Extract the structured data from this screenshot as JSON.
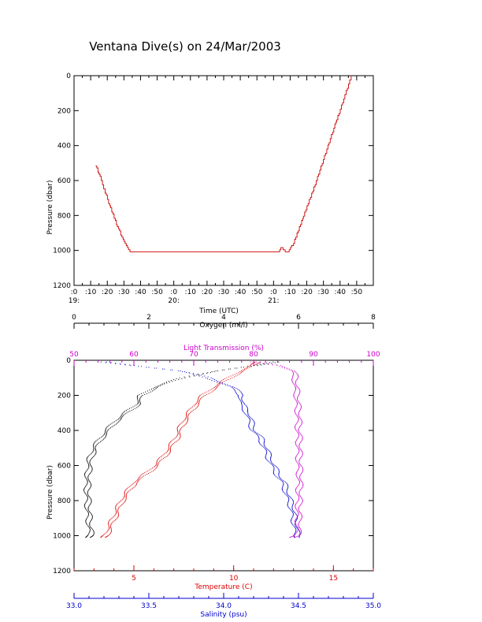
{
  "title": "Ventana Dive(s) on 24/Mar/2003",
  "colors": {
    "axis": "#000000",
    "depth": "#cc0000",
    "temperature": "#dd0000",
    "salinity": "#0000cc",
    "oxygen": "#000000",
    "transmission": "#cc00cc"
  },
  "chart_data": [
    {
      "type": "line",
      "id": "time-depth",
      "xlabel": "Time (UTC)",
      "ylabel": "Pressure (dbar)",
      "ylim": [
        1200,
        0
      ],
      "yticks": [
        "0",
        "200",
        "400",
        "600",
        "800",
        "1000",
        "1200"
      ],
      "xticks": [
        ":0",
        ":10",
        ":20",
        ":30",
        ":40",
        ":50",
        ":0",
        ":10",
        ":20",
        ":30",
        ":40",
        ":50",
        ":0",
        ":10",
        ":20",
        ":30",
        ":40",
        ":50"
      ],
      "hour_labels": [
        "19:",
        "20:",
        "21:"
      ],
      "x_minutes_range": [
        1140,
        1320
      ],
      "series": [
        {
          "color": "#cc0000",
          "x": [
            "19:13",
            "19:15",
            "19:18",
            "19:22",
            "19:26",
            "19:30",
            "19:33",
            "19:36",
            "19:38",
            "19:40",
            "20:00",
            "20:30",
            "21:00",
            "21:03",
            "21:05",
            "21:07",
            "21:08",
            "21:12",
            "21:18",
            "21:25",
            "21:32",
            "21:38",
            "21:43",
            "21:46",
            "21:47"
          ],
          "y": [
            515,
            560,
            650,
            760,
            860,
            950,
            1000,
            1012,
            1010,
            1012,
            1012,
            1012,
            1012,
            1010,
            980,
            1010,
            1012,
            960,
            800,
            620,
            420,
            250,
            110,
            20,
            0
          ]
        }
      ]
    },
    {
      "type": "scatter",
      "id": "profiles",
      "ylabel": "Pressure (dbar)",
      "ylim": [
        1200,
        0
      ],
      "yticks": [
        "0",
        "200",
        "400",
        "600",
        "800",
        "1000",
        "1200"
      ],
      "axes": [
        {
          "key": "oxygen",
          "label": "Oxygen (ml/l)",
          "position": "top-outer",
          "range": [
            0,
            8
          ],
          "ticks": [
            "0",
            "2",
            "4",
            "6",
            "8"
          ],
          "color": "#000000"
        },
        {
          "key": "transmission",
          "label": "Light Transmission (%)",
          "position": "top-inner",
          "range": [
            50,
            100
          ],
          "ticks": [
            "50",
            "60",
            "70",
            "80",
            "90",
            "100"
          ],
          "color": "#cc00cc"
        },
        {
          "key": "temperature",
          "label": "Temperature (C)",
          "position": "bottom-inner",
          "range": [
            2.0,
            17.0
          ],
          "ticks": [
            "5",
            "10",
            "15"
          ],
          "color": "#dd0000"
        },
        {
          "key": "salinity",
          "label": "Salinity (psu)",
          "position": "bottom-outer",
          "range": [
            33.0,
            35.0
          ],
          "ticks": [
            "33.0",
            "33.5",
            "34.0",
            "34.5",
            "35.0"
          ],
          "color": "#0000cc"
        }
      ],
      "series": [
        {
          "name": "Temperature",
          "axis": "temperature",
          "color": "#dd0000",
          "pressure": [
            10,
            30,
            60,
            100,
            150,
            200,
            250,
            300,
            350,
            400,
            450,
            500,
            550,
            600,
            650,
            700,
            750,
            800,
            850,
            900,
            950,
            1000,
            1012
          ],
          "values": [
            11.2,
            11.0,
            10.4,
            9.8,
            9.1,
            8.5,
            8.1,
            7.8,
            7.5,
            7.3,
            7.1,
            6.8,
            6.5,
            6.1,
            5.6,
            5.0,
            4.7,
            4.4,
            4.2,
            4.0,
            3.8,
            3.6,
            3.5
          ]
        },
        {
          "name": "Salinity",
          "axis": "salinity",
          "color": "#0000cc",
          "pressure": [
            10,
            30,
            60,
            100,
            150,
            200,
            250,
            300,
            350,
            400,
            450,
            500,
            550,
            600,
            650,
            700,
            750,
            800,
            850,
            900,
            950,
            1000,
            1012
          ],
          "values": [
            33.2,
            33.4,
            33.7,
            33.9,
            34.05,
            34.12,
            34.12,
            34.16,
            34.18,
            34.2,
            34.25,
            34.28,
            34.3,
            34.33,
            34.36,
            34.4,
            34.42,
            34.44,
            34.46,
            34.47,
            34.48,
            34.49,
            34.5
          ]
        },
        {
          "name": "Oxygen",
          "axis": "oxygen",
          "color": "#000000",
          "pressure": [
            10,
            30,
            60,
            100,
            150,
            200,
            250,
            300,
            350,
            400,
            450,
            500,
            550,
            600,
            650,
            700,
            750,
            800,
            850,
            900,
            950,
            1000,
            1012
          ],
          "values": [
            5.4,
            4.9,
            3.8,
            2.9,
            2.2,
            1.8,
            1.7,
            1.4,
            1.1,
            0.9,
            0.7,
            0.55,
            0.45,
            0.4,
            0.38,
            0.36,
            0.36,
            0.37,
            0.38,
            0.4,
            0.42,
            0.45,
            0.4
          ]
        },
        {
          "name": "Light Transmission",
          "axis": "transmission",
          "color": "#cc00cc",
          "pressure": [
            10,
            30,
            60,
            100,
            150,
            200,
            250,
            300,
            350,
            400,
            450,
            500,
            550,
            600,
            650,
            700,
            750,
            800,
            850,
            900,
            950,
            1000,
            1012
          ],
          "values": [
            80.0,
            84.5,
            86.5,
            87.0,
            87.0,
            87.3,
            87.3,
            87.5,
            87.5,
            87.5,
            87.6,
            87.6,
            87.6,
            87.6,
            87.7,
            87.7,
            87.6,
            87.6,
            87.5,
            87.5,
            87.5,
            87.3,
            86.5
          ]
        }
      ]
    }
  ]
}
